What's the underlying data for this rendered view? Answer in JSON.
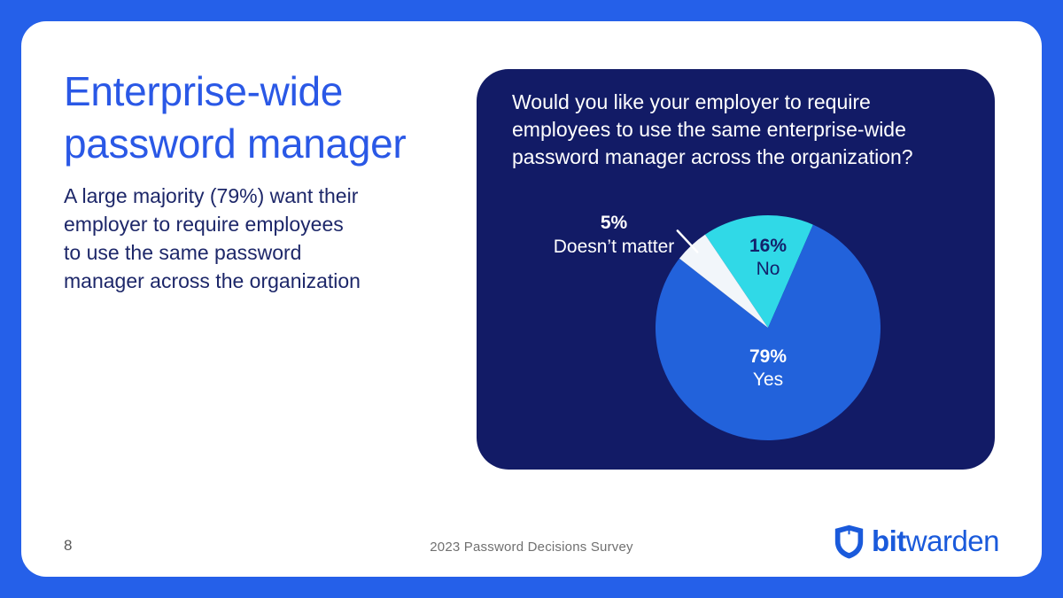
{
  "slide": {
    "title": "Enterprise-wide password manager",
    "subtitle": "A large majority (79%) want their employer to require employees to use the same password manager across the organization",
    "page_number": "8",
    "footer": "2023 Password Decisions Survey"
  },
  "card": {
    "question": "Would you like your employer to require employees to use the same enterprise-wide password manager across the organization?"
  },
  "logo": {
    "brand_bold": "bit",
    "brand_regular": "warden"
  },
  "chart_data": {
    "type": "pie",
    "title": "Would you like your employer to require employees to use the same enterprise-wide password manager across the organization?",
    "slices": [
      {
        "label": "Yes",
        "value": 79,
        "display": "79%",
        "color": "#2262DB",
        "label_color": "#FFFFFF",
        "label_position": "inside"
      },
      {
        "label": "No",
        "value": 16,
        "display": "16%",
        "color": "#30D9E7",
        "label_color": "#13216B",
        "label_position": "inside"
      },
      {
        "label": "Doesn’t matter",
        "value": 5,
        "display": "5%",
        "color": "#F2F6FA",
        "label_color": "#FFFFFF",
        "label_position": "outside-callout"
      }
    ],
    "draw_order": [
      "No",
      "Yes",
      "Doesn’t matter"
    ],
    "start_angle_deg": -34,
    "legend": "none",
    "background": "#121B66",
    "callout_color": "#FFFFFF"
  },
  "colors": {
    "frame": "#2560E9",
    "slide_bg": "#FFFFFF",
    "title": "#2A58E6",
    "body": "#1D2769",
    "card": "#121B66",
    "labelnavy": "#13216B",
    "logo": "#1A5ADB",
    "footer_gray": "#707070"
  }
}
